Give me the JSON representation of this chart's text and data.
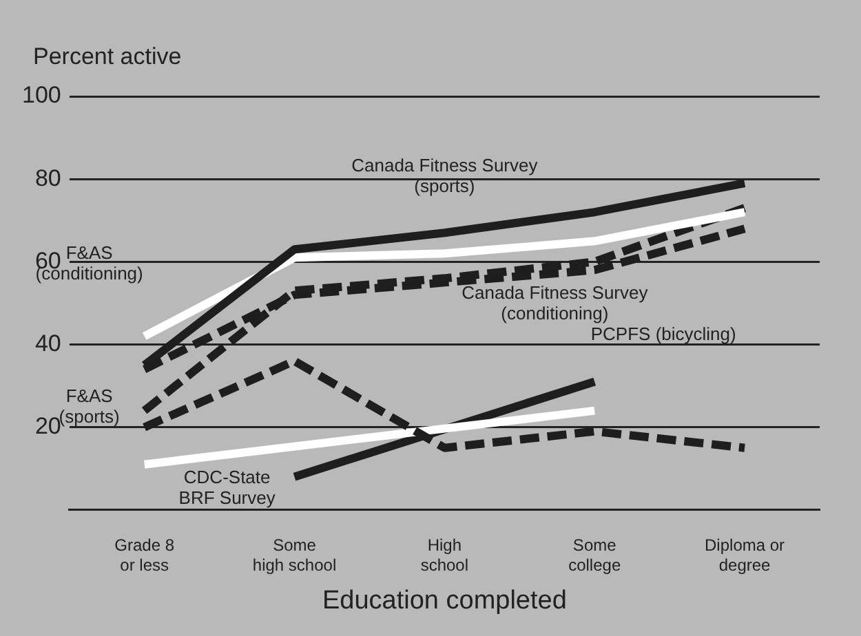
{
  "chart_data": {
    "type": "line",
    "ylabel": "Percent active",
    "xlabel": "Education completed",
    "categories": [
      "Grade 8\nor less",
      "Some\nhigh school",
      "High\nschool",
      "Some\ncollege",
      "Diploma or\ndegree"
    ],
    "ylim": [
      0,
      100
    ],
    "yticks": [
      20,
      40,
      60,
      80,
      100
    ],
    "grid": "y",
    "marker": "none",
    "legend": false,
    "series": [
      {
        "name": "Canada Fitness Survey\n(sports)",
        "color": "#1e1e1e",
        "line_style": "solid",
        "values": [
          35,
          63,
          67,
          72,
          79
        ]
      },
      {
        "name": "F&AS\n(conditioning)",
        "color": "#ffffff",
        "line_style": "solid",
        "values": [
          42,
          61,
          62,
          65,
          72
        ]
      },
      {
        "name": "F&AS\n(sports)",
        "color": "#1e1e1e",
        "line_style": "dashed",
        "values": [
          24,
          53,
          56,
          60,
          73
        ]
      },
      {
        "name": "Canada Fitness Survey\n(conditioning)",
        "color": "#1e1e1e",
        "line_style": "dashed",
        "values": [
          34,
          52,
          55,
          58,
          68
        ]
      },
      {
        "color": "#1e1e1e",
        "line_style": "dashed",
        "values": [
          20,
          36,
          15,
          19,
          15
        ]
      },
      {
        "name": "CDC-State\nBRF Survey",
        "color": "#ffffff",
        "line_style": "solid",
        "values": [
          11,
          null,
          null,
          24,
          null
        ]
      },
      {
        "name": "PCPFS (bicycling)",
        "color": "#1e1e1e",
        "line_style": "solid",
        "values": [
          null,
          8,
          null,
          31,
          null
        ]
      }
    ]
  }
}
